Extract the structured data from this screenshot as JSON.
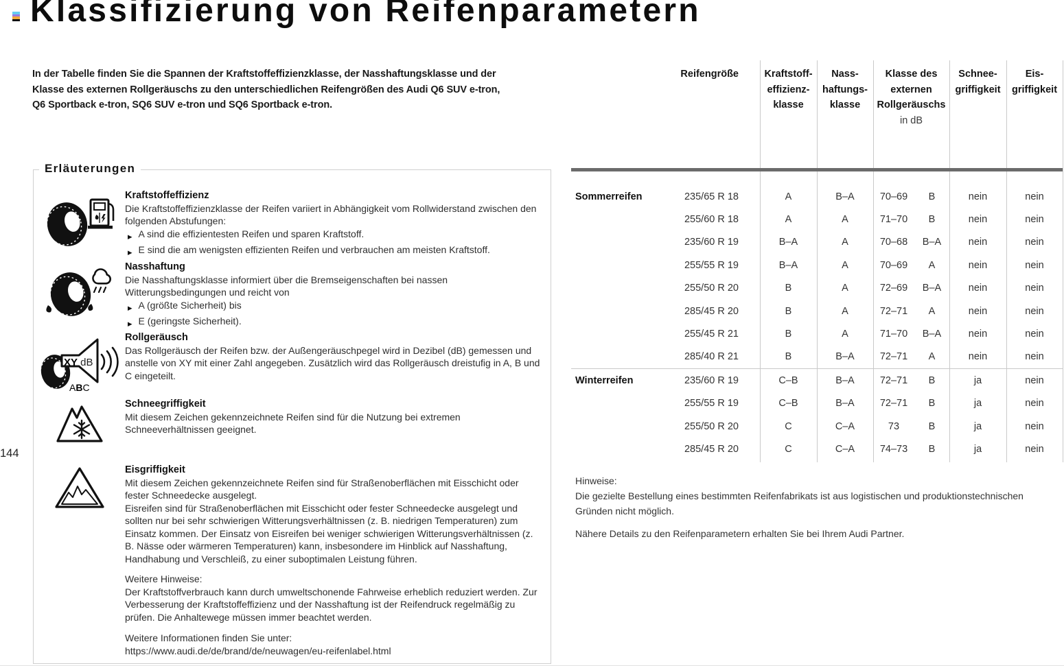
{
  "page": {
    "title": "Klassifizierung von Reifenparametern",
    "page_number": "144",
    "intro": "In der Tabelle finden Sie die Spannen der Kraftstoffeffizienzklasse, der Nasshaftungsklasse und der Klasse des externen Rollgeräuschs zu den unterschiedlichen Reifengrößen des Audi Q6 SUV e-tron, Q6 Sportback e-tron, SQ6 SUV e-tron und SQ6 Sportback e-tron.",
    "print_mark_colors": [
      "#67cdf2",
      "#9b79e0",
      "#f2a93b",
      "#111111"
    ]
  },
  "legend_box": {
    "title": "Erläuterungen",
    "bullet_marker": "▶",
    "sections": [
      {
        "icon": "tire-fuel-pump-icon",
        "heading": "Kraftstoffeffizienz",
        "paragraphs": [
          "Die Kraftstoffeffizienzklasse der Reifen variiert in Abhängigkeit vom Rollwiderstand zwischen den folgenden Abstufungen:"
        ],
        "bullets": [
          "A sind die effizientesten Reifen und sparen Kraftstoff.",
          "E sind die am wenigsten effizienten Reifen und verbrauchen am meisten Kraftstoff."
        ]
      },
      {
        "icon": "tire-rain-icon",
        "heading": "Nasshaftung",
        "paragraphs": [
          "Die Nasshaftungsklasse informiert über die Bremseigenschaften bei nassen Witterungsbedingungen und reicht von"
        ],
        "bullets": [
          "A (größte Sicherheit) bis",
          "E (geringste Sicherheit)."
        ]
      },
      {
        "icon": "tire-noise-speaker-icon",
        "heading": "Rollgeräusch",
        "paragraphs": [
          "Das Rollgeräusch der Reifen bzw. der Außengeräuschpegel wird in Dezibel (dB) gemessen und anstelle von XY mit einer Zahl angegeben. Zusätzlich wird das Rollgeräusch dreistufig in A, B und C eingeteilt."
        ],
        "bullets": []
      },
      {
        "icon": "snow-grip-3pmsf-icon",
        "heading": "Schneegriffigkeit",
        "paragraphs": [
          "Mit diesem Zeichen gekennzeichnete Reifen sind für die Nutzung bei extremen Schneeverhältnissen geeignet."
        ],
        "bullets": []
      },
      {
        "icon": "ice-grip-icon",
        "heading": "Eisgriffigkeit",
        "paragraphs": [
          "Mit diesem Zeichen gekennzeichnete Reifen sind für Straßenoberflächen mit Eisschicht oder fester Schneedecke ausgelegt.",
          "Eisreifen sind für Straßenoberflächen mit Eisschicht oder fester Schneedecke ausgelegt und sollten nur bei sehr schwierigen Witterungsverhältnissen (z. B. niedrigen Temperaturen) zum Einsatz kommen. Der Einsatz von Eisreifen bei weniger schwierigen Witterungsverhältnissen (z. B. Nässe oder wärmeren Temperaturen) kann, insbesondere im Hinblick auf Nasshaftung, Handhabung und Verschleiß, zu einer suboptimalen Leistung führen."
        ],
        "bullets": []
      }
    ],
    "footnotes": [
      {
        "lines": [
          "Weitere Hinweise:",
          "Der Kraftstoffverbrauch kann durch umweltschonende Fahrweise erheblich reduziert werden. Zur Verbesserung der Kraftstoffeffizienz und der Nasshaftung ist der Reifendruck regelmäßig zu prüfen. Die Anhaltewege müssen immer beachtet werden."
        ]
      },
      {
        "lines": [
          "Weitere Informationen finden Sie unter:",
          "https://www.audi.de/de/brand/de/neuwagen/eu-reifenlabel.html"
        ]
      }
    ]
  },
  "table": {
    "columns": {
      "size": "Reifengröße",
      "fuel": [
        "Kraftstoff-",
        "effizienz-",
        "klasse"
      ],
      "wet": [
        "Nass-",
        "haftungs-",
        "klasse"
      ],
      "noise": [
        "Klasse des",
        "externen",
        "Rollgeräuschs"
      ],
      "noise_unit": "in dB",
      "snow": [
        "Schnee-",
        "griffigkeit"
      ],
      "ice": [
        "Eis-",
        "griffigkeit"
      ]
    },
    "groups": [
      {
        "label": "Sommerreifen",
        "rows": [
          {
            "size": "235/65 R 18",
            "fuel": "A",
            "wet": "B–A",
            "noise_db": "70–69",
            "noise_class": "B",
            "snow": "nein",
            "ice": "nein"
          },
          {
            "size": "255/60 R 18",
            "fuel": "A",
            "wet": "A",
            "noise_db": "71–70",
            "noise_class": "B",
            "snow": "nein",
            "ice": "nein"
          },
          {
            "size": "235/60 R 19",
            "fuel": "B–A",
            "wet": "A",
            "noise_db": "70–68",
            "noise_class": "B–A",
            "snow": "nein",
            "ice": "nein"
          },
          {
            "size": "255/55 R 19",
            "fuel": "B–A",
            "wet": "A",
            "noise_db": "70–69",
            "noise_class": "A",
            "snow": "nein",
            "ice": "nein"
          },
          {
            "size": "255/50 R 20",
            "fuel": "B",
            "wet": "A",
            "noise_db": "72–69",
            "noise_class": "B–A",
            "snow": "nein",
            "ice": "nein"
          },
          {
            "size": "285/45 R 20",
            "fuel": "B",
            "wet": "A",
            "noise_db": "72–71",
            "noise_class": "A",
            "snow": "nein",
            "ice": "nein"
          },
          {
            "size": "255/45 R 21",
            "fuel": "B",
            "wet": "A",
            "noise_db": "71–70",
            "noise_class": "B–A",
            "snow": "nein",
            "ice": "nein"
          },
          {
            "size": "285/40 R 21",
            "fuel": "B",
            "wet": "B–A",
            "noise_db": "72–71",
            "noise_class": "A",
            "snow": "nein",
            "ice": "nein"
          }
        ]
      },
      {
        "label": "Winterreifen",
        "rows": [
          {
            "size": "235/60 R 19",
            "fuel": "C–B",
            "wet": "B–A",
            "noise_db": "72–71",
            "noise_class": "B",
            "snow": "ja",
            "ice": "nein"
          },
          {
            "size": "255/55 R 19",
            "fuel": "C–B",
            "wet": "B–A",
            "noise_db": "72–71",
            "noise_class": "B",
            "snow": "ja",
            "ice": "nein"
          },
          {
            "size": "255/50 R 20",
            "fuel": "C",
            "wet": "C–A",
            "noise_db": "73",
            "noise_class": "B",
            "snow": "ja",
            "ice": "nein"
          },
          {
            "size": "285/45 R 20",
            "fuel": "C",
            "wet": "C–A",
            "noise_db": "74–73",
            "noise_class": "B",
            "snow": "ja",
            "ice": "nein"
          }
        ]
      }
    ]
  },
  "notes": {
    "heading": "Hinweise:",
    "paragraphs": [
      "Die gezielte Bestellung eines bestimmten Reifenfabrikats ist aus logistischen und produktionstechnischen Gründen nicht möglich.",
      "Nähere Details zu den Reifenparametern erhalten Sie bei Ihrem Audi Partner."
    ]
  }
}
